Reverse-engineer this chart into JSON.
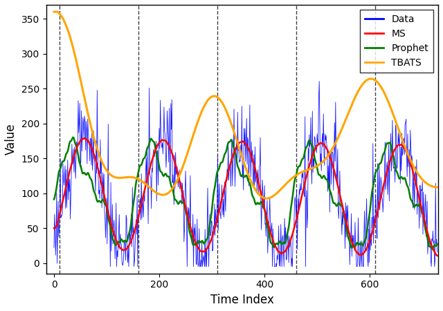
{
  "title": "",
  "xlabel": "Time Index",
  "ylabel": "Value",
  "xlim": [
    -15,
    730
  ],
  "ylim": [
    -15,
    370
  ],
  "xticks": [
    0,
    200,
    400,
    600
  ],
  "yticks": [
    0,
    50,
    100,
    150,
    200,
    250,
    300,
    350
  ],
  "vlines": [
    10,
    160,
    310,
    460,
    610
  ],
  "legend_labels": [
    "Data",
    "MS",
    "Prophet",
    "TBATS"
  ],
  "legend_colors": [
    "blue",
    "red",
    "green",
    "orange"
  ],
  "data_color": "blue",
  "ms_color": "red",
  "prophet_color": "green",
  "tbats_color": "orange",
  "n_points": 730,
  "background_color": "white",
  "figsize": [
    6.4,
    4.5
  ],
  "dpi": 100
}
